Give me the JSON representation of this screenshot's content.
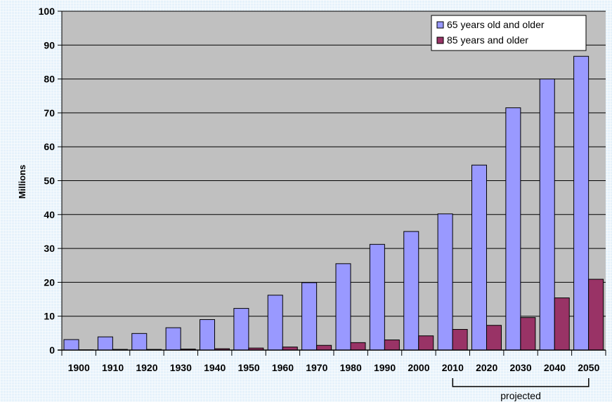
{
  "chart_data": {
    "type": "bar",
    "title": "",
    "xlabel": "",
    "ylabel": "Millions",
    "ylim": [
      0,
      100
    ],
    "yticks": [
      0,
      10,
      20,
      30,
      40,
      50,
      60,
      70,
      80,
      90,
      100
    ],
    "grid": true,
    "legend_position": "top-right",
    "categories": [
      "1900",
      "1910",
      "1920",
      "1930",
      "1940",
      "1950",
      "1960",
      "1970",
      "1980",
      "1990",
      "2000",
      "2010",
      "2020",
      "2030",
      "2040",
      "2050"
    ],
    "series": [
      {
        "name": "65 years old and older",
        "color": "#9999ff",
        "values": [
          3.1,
          3.9,
          4.9,
          6.6,
          9.0,
          12.3,
          16.2,
          19.9,
          25.5,
          31.2,
          35.0,
          40.2,
          54.6,
          71.5,
          80.0,
          86.7
        ]
      },
      {
        "name": "85 years and older",
        "color": "#993366",
        "values": [
          0.1,
          0.2,
          0.2,
          0.3,
          0.4,
          0.6,
          0.9,
          1.4,
          2.2,
          3.0,
          4.2,
          6.1,
          7.3,
          9.6,
          15.4,
          20.9
        ]
      }
    ],
    "annotation": {
      "label": "projected",
      "from": "2010",
      "to": "2050"
    },
    "colors": {
      "plot_background": "#c0c0c0",
      "gridline": "#000000",
      "bar_outline": "#000000"
    }
  }
}
